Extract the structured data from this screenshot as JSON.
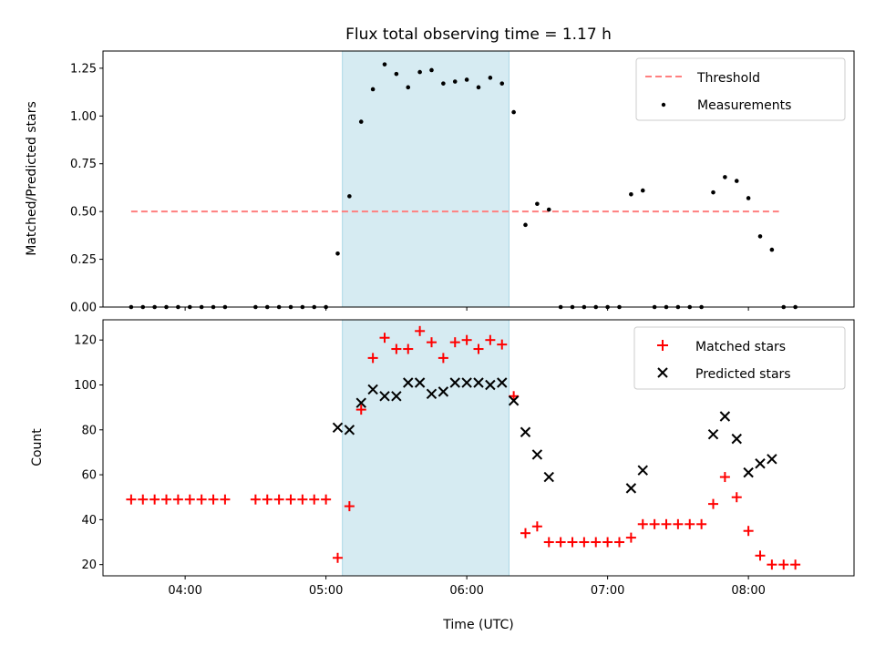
{
  "title": "Flux total observing time = 1.17 h",
  "xlabel": "Time (UTC)",
  "x_ticks": [
    "04:00",
    "05:00",
    "06:00",
    "07:00",
    "08:00"
  ],
  "colors": {
    "threshold": "#ff7f7f",
    "measurements": "#000000",
    "matched": "#ff0000",
    "predicted": "#000000",
    "span": "#add8e6"
  },
  "chart_data": [
    {
      "type": "scatter",
      "ylabel": "Matched/Predicted stars",
      "xlim": [
        "03:25",
        "08:45"
      ],
      "ylim": [
        0,
        1.34
      ],
      "yticks": [
        "0.00",
        "0.25",
        "0.50",
        "0.75",
        "1.00",
        "1.25"
      ],
      "highlight_span": [
        "05:07",
        "06:18"
      ],
      "legend": {
        "placement": "upper right",
        "entries": [
          "Threshold",
          "Measurements"
        ]
      },
      "series": [
        {
          "name": "Threshold",
          "style": "dashed-line",
          "x": [
            "03:37",
            "08:13"
          ],
          "y": [
            0.5,
            0.5
          ]
        },
        {
          "name": "Measurements",
          "style": "dot",
          "x": [
            "03:37",
            "03:42",
            "03:47",
            "03:52",
            "03:57",
            "04:02",
            "04:07",
            "04:12",
            "04:17",
            "04:30",
            "04:35",
            "04:40",
            "04:45",
            "04:50",
            "04:55",
            "05:00",
            "05:05",
            "05:10",
            "05:15",
            "05:20",
            "05:25",
            "05:30",
            "05:35",
            "05:40",
            "05:45",
            "05:50",
            "05:55",
            "06:00",
            "06:05",
            "06:10",
            "06:15",
            "06:20",
            "06:25",
            "06:30",
            "06:35",
            "06:40",
            "06:45",
            "06:50",
            "06:55",
            "07:00",
            "07:05",
            "07:10",
            "07:15",
            "07:20",
            "07:25",
            "07:30",
            "07:35",
            "07:40",
            "07:45",
            "07:50",
            "07:55",
            "08:00",
            "08:05",
            "08:10",
            "08:15",
            "08:20"
          ],
          "y": [
            0,
            0,
            0,
            0,
            0,
            0,
            0,
            0,
            0,
            0,
            0,
            0,
            0,
            0,
            0,
            0,
            0.28,
            0.58,
            0.97,
            1.14,
            1.27,
            1.22,
            1.15,
            1.23,
            1.24,
            1.17,
            1.18,
            1.19,
            1.15,
            1.2,
            1.17,
            1.02,
            0.43,
            0.54,
            0.51,
            0,
            0,
            0,
            0,
            0,
            0,
            0.59,
            0.61,
            0,
            0,
            0,
            0,
            0,
            0.6,
            0.68,
            0.66,
            0.57,
            0.37,
            0.3,
            0,
            0
          ]
        }
      ]
    },
    {
      "type": "scatter",
      "ylabel": "Count",
      "xlim": [
        "03:25",
        "08:45"
      ],
      "ylim": [
        15,
        129
      ],
      "yticks": [
        "20",
        "40",
        "60",
        "80",
        "100",
        "120"
      ],
      "highlight_span": [
        "05:07",
        "06:18"
      ],
      "legend": {
        "placement": "upper right",
        "entries": [
          "Matched stars",
          "Predicted stars"
        ]
      },
      "series": [
        {
          "name": "Matched stars",
          "marker": "+",
          "x": [
            "03:37",
            "03:42",
            "03:47",
            "03:52",
            "03:57",
            "04:02",
            "04:07",
            "04:12",
            "04:17",
            "04:30",
            "04:35",
            "04:40",
            "04:45",
            "04:50",
            "04:55",
            "05:00",
            "05:05",
            "05:10",
            "05:15",
            "05:20",
            "05:25",
            "05:30",
            "05:35",
            "05:40",
            "05:45",
            "05:50",
            "05:55",
            "06:00",
            "06:05",
            "06:10",
            "06:15",
            "06:20",
            "06:25",
            "06:30",
            "06:35",
            "06:40",
            "06:45",
            "06:50",
            "06:55",
            "07:00",
            "07:05",
            "07:10",
            "07:15",
            "07:20",
            "07:25",
            "07:30",
            "07:35",
            "07:40",
            "07:45",
            "07:50",
            "07:55",
            "08:00",
            "08:05",
            "08:10",
            "08:15",
            "08:20"
          ],
          "y": [
            49,
            49,
            49,
            49,
            49,
            49,
            49,
            49,
            49,
            49,
            49,
            49,
            49,
            49,
            49,
            49,
            23,
            46,
            89,
            112,
            121,
            116,
            116,
            124,
            119,
            112,
            119,
            120,
            116,
            120,
            118,
            95,
            34,
            37,
            30,
            30,
            30,
            30,
            30,
            30,
            30,
            32,
            38,
            38,
            38,
            38,
            38,
            38,
            47,
            59,
            50,
            35,
            24,
            20,
            20,
            20
          ]
        },
        {
          "name": "Predicted stars",
          "marker": "x",
          "x": [
            "05:05",
            "05:10",
            "05:15",
            "05:20",
            "05:25",
            "05:30",
            "05:35",
            "05:40",
            "05:45",
            "05:50",
            "05:55",
            "06:00",
            "06:05",
            "06:10",
            "06:15",
            "06:20",
            "06:25",
            "06:30",
            "06:35",
            "07:10",
            "07:15",
            "07:45",
            "07:50",
            "07:55",
            "08:00",
            "08:05",
            "08:10"
          ],
          "y": [
            81,
            80,
            92,
            98,
            95,
            95,
            101,
            101,
            96,
            97,
            101,
            101,
            101,
            100,
            101,
            93,
            79,
            69,
            59,
            54,
            62,
            78,
            86,
            76,
            61,
            65,
            67
          ]
        }
      ]
    }
  ]
}
